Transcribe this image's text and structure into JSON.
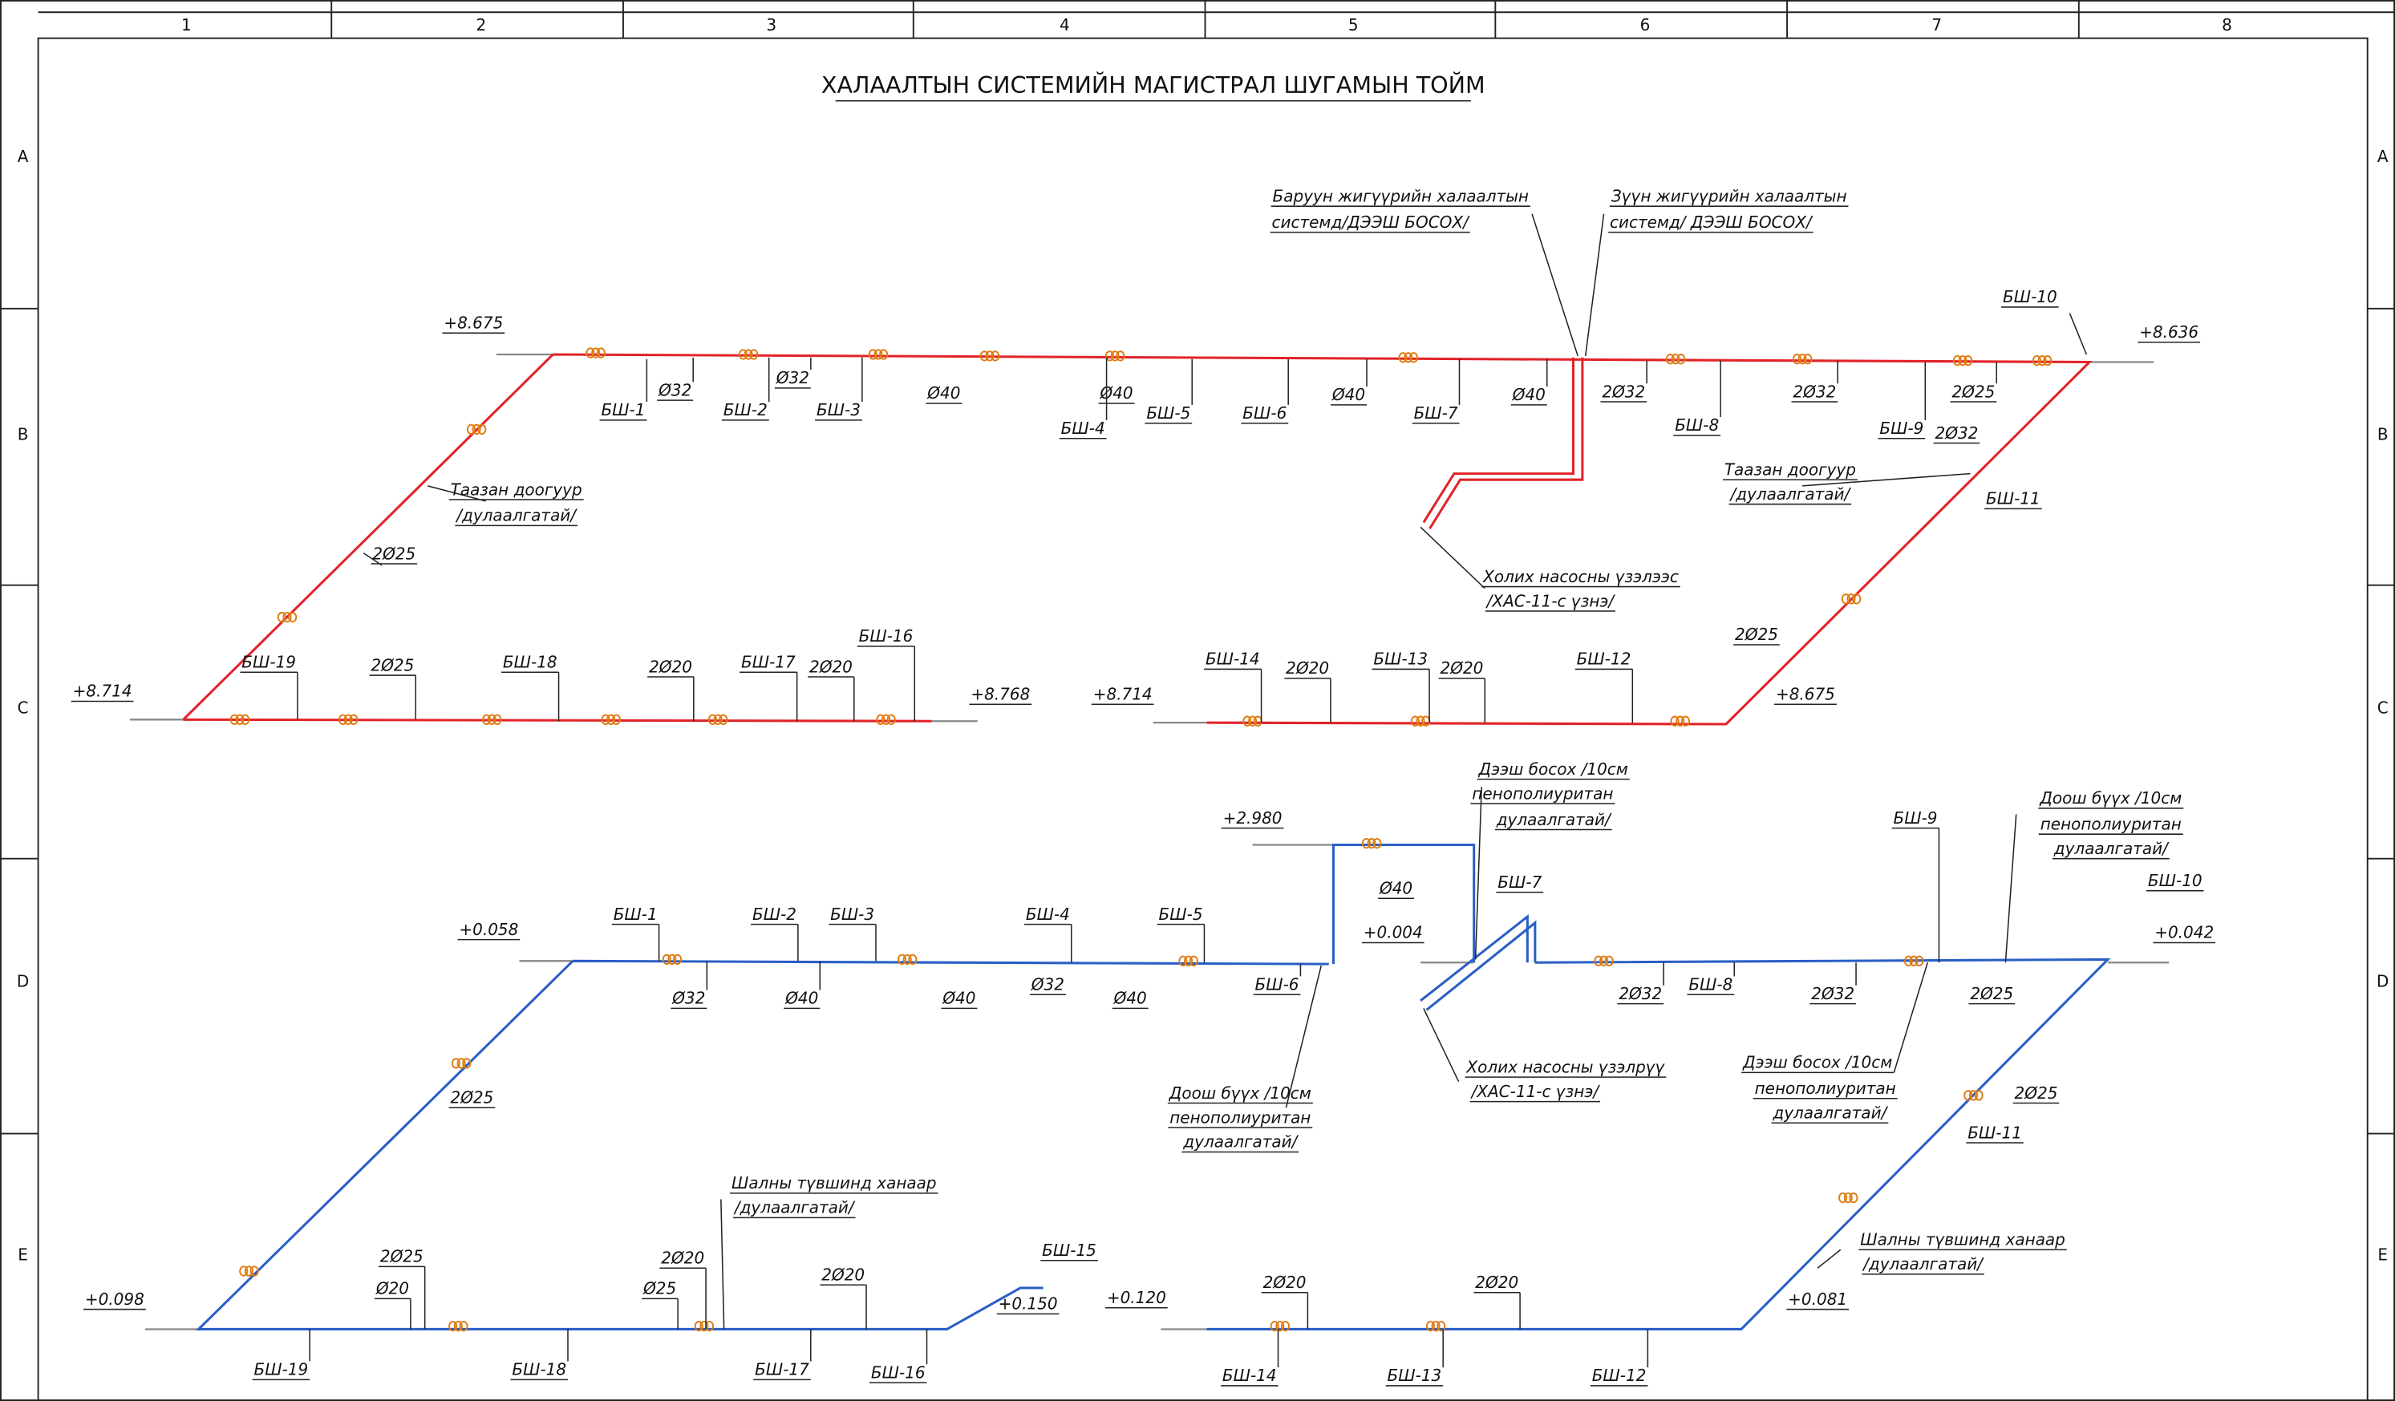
{
  "title": "ХАЛААЛТЫН СИСТЕМИЙН МАГИСТРАЛ ШУГАМЫН ТОЙМ",
  "columns": [
    "1",
    "2",
    "3",
    "4",
    "5",
    "6",
    "7",
    "8"
  ],
  "rows": [
    "A",
    "B",
    "C",
    "D",
    "E"
  ],
  "supply": {
    "labels": [
      "+8.675",
      "+8.636",
      "+8.714",
      "+8.768",
      "+8.714",
      "+8.675",
      "БШ-1",
      "Ø32",
      "БШ-2",
      "Ø32",
      "БШ-3",
      "Ø40",
      "Ø40",
      "БШ-4",
      "БШ-5",
      "БШ-6",
      "Ø40",
      "БШ-7",
      "Ø40",
      "2Ø32",
      "БШ-8",
      "2Ø32",
      "БШ-9",
      "2Ø25",
      "2Ø32",
      "БШ-10",
      "БШ-11",
      "Баруун жигүүрийн халаалтын",
      "системд/ДЭЭШ БОСОХ/",
      "Зүүн жигүүрийн халаалтын",
      "системд/ ДЭЭШ БОСОХ/",
      "Таазан доогуур",
      "/дулаалгатай/",
      "Таазан доогуур",
      "/дулаалгатай/",
      "2Ø25",
      "Холих насосны үзэлээс",
      "/ХАС-11-с үзнэ/",
      "2Ø25",
      "БШ-19",
      "2Ø25",
      "БШ-18",
      "2Ø20",
      "БШ-17",
      "2Ø20",
      "БШ-16",
      "БШ-14",
      "2Ø20",
      "БШ-13",
      "2Ø20",
      "БШ-12"
    ]
  },
  "return": {
    "labels": [
      "+2.980",
      "Ø40",
      "Дээш босох /10см",
      "пенополиуритан",
      "дулаалгатай/",
      "БШ-7",
      "+0.058",
      "БШ-1",
      "Ø32",
      "БШ-2",
      "БШ-3",
      "Ø40",
      "Ø40",
      "БШ-4",
      "Ø32",
      "Ø40",
      "БШ-5",
      "БШ-6",
      "Доош бүүх /10см",
      "пенополиуритан",
      "дулаалгатай/",
      "+0.004",
      "2Ø32",
      "БШ-8",
      "2Ø32",
      "БШ-9",
      "Доош бүүх /10см",
      "пенополиуритан",
      "дулаалгатай/",
      "БШ-10",
      "+0.042",
      "2Ø25",
      "Холих насосны үзэлрүү",
      "/ХАС-11-с үзнэ/",
      "Дээш босох /10см",
      "пенополиуритан",
      "дулаалгатай/",
      "2Ø25",
      "БШ-11",
      "2Ø25",
      "Шалны түвшинд ханаар",
      "/дулаалгатай/",
      "Шалны түвшинд ханаар",
      "/дулаалгатай/",
      "+0.098",
      "2Ø25",
      "Ø20",
      "Ø25",
      "2Ø20",
      "2Ø20",
      "БШ-15",
      "+0.150",
      "БШ-19",
      "БШ-18",
      "БШ-17",
      "БШ-16",
      "+0.120",
      "2Ø20",
      "2Ø20",
      "БШ-14",
      "БШ-13",
      "БШ-12",
      "+0.081"
    ]
  }
}
